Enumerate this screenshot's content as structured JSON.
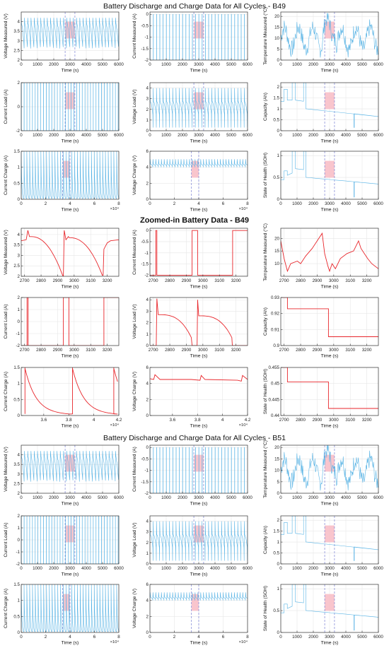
{
  "figure": {
    "section_titles": [
      "Battery Discharge and Charge Data for All Cycles - B49",
      "Zoomed-in Battery Data - B49",
      "Battery Discharge and Charge Data for All Cycles - B51"
    ],
    "colors": {
      "overview_line": "#5ab4e5",
      "zoom_line": "#e8262b",
      "highlight_fill": "#f7b6c0",
      "highlight_edge": "#8a8fd8",
      "axes": "#333333",
      "grid": "#e6e6e6"
    },
    "exponent_label": "×10⁴"
  },
  "chart_data": [
    {
      "id": "b49-voltage-measured",
      "section": 0,
      "type": "line",
      "ylabel": "Voltage Measured (V)",
      "xlabel": "Time (s)",
      "xlim": [
        0,
        6000
      ],
      "ylim": [
        2,
        4.5
      ],
      "xticks": [
        0,
        1000,
        2000,
        3000,
        4000,
        5000,
        6000
      ],
      "yticks": [
        2,
        2.5,
        3,
        3.5,
        4
      ],
      "pattern": "sawtooth_down",
      "highlight": [
        2700,
        3300
      ],
      "grid": true
    },
    {
      "id": "b49-current-measured",
      "section": 0,
      "type": "line",
      "ylabel": "Current Measured (A)",
      "xlabel": "Time (s)",
      "xlim": [
        0,
        6000
      ],
      "ylim": [
        -2,
        0.1
      ],
      "xticks": [
        0,
        1000,
        2000,
        3000,
        4000,
        5000,
        6000
      ],
      "yticks": [
        -2,
        -1.5,
        -1,
        -0.5,
        0
      ],
      "pattern": "square_neg",
      "highlight": [
        2700,
        3300
      ],
      "grid": true
    },
    {
      "id": "b49-temperature-measured",
      "section": 0,
      "type": "line",
      "ylabel": "Temperature Measured (°C)",
      "xlabel": "Time (s)",
      "xlim": [
        0,
        6000
      ],
      "ylim": [
        0,
        22
      ],
      "xticks": [
        0,
        1000,
        2000,
        3000,
        4000,
        5000,
        6000
      ],
      "yticks": [
        0,
        5,
        10,
        15,
        20
      ],
      "pattern": "noisy_temp",
      "highlight": [
        2700,
        3300
      ],
      "grid": true
    },
    {
      "id": "b49-current-load",
      "section": 0,
      "type": "line",
      "ylabel": "Current Load (A)",
      "xlabel": "Time (s)",
      "xlim": [
        0,
        6000
      ],
      "ylim": [
        -2,
        2
      ],
      "xticks": [
        0,
        1000,
        2000,
        3000,
        4000,
        5000,
        6000
      ],
      "yticks": [
        -2,
        0,
        2
      ],
      "pattern": "square_full",
      "highlight": [
        2700,
        3300
      ],
      "grid": true
    },
    {
      "id": "b49-voltage-load",
      "section": 0,
      "type": "line",
      "ylabel": "Voltage Load (V)",
      "xlabel": "Time (s)",
      "xlim": [
        0,
        6000
      ],
      "ylim": [
        0,
        4.5
      ],
      "xticks": [
        0,
        1000,
        2000,
        3000,
        4000,
        5000,
        6000
      ],
      "yticks": [
        0,
        1,
        2,
        3,
        4
      ],
      "pattern": "sawtooth_load",
      "highlight": [
        2700,
        3300
      ],
      "grid": true
    },
    {
      "id": "b49-capacity",
      "section": 0,
      "type": "line",
      "ylabel": "Capacity (Ah)",
      "xlabel": "Time (s)",
      "xlim": [
        0,
        6000
      ],
      "ylim": [
        0,
        2.2
      ],
      "xticks": [
        0,
        1000,
        2000,
        3000,
        4000,
        5000,
        6000
      ],
      "yticks": [
        0,
        0.5,
        1,
        1.5,
        2
      ],
      "pattern": "capacity",
      "highlight": [
        2700,
        3300
      ],
      "grid": true
    },
    {
      "id": "b49-current-charge",
      "section": 0,
      "type": "line",
      "ylabel": "Current Charge (A)",
      "xlabel": "Time (s)",
      "xlim": [
        0,
        80000
      ],
      "ylim": [
        0,
        1.5
      ],
      "xticks": [
        0,
        20000,
        40000,
        60000,
        80000
      ],
      "xticklabels": [
        "0",
        "2",
        "4",
        "6",
        "8"
      ],
      "yticks": [
        0,
        0.5,
        1,
        1.5
      ],
      "pattern": "charge_spikes",
      "highlight": [
        34000,
        40000
      ],
      "exponent": true,
      "grid": true
    },
    {
      "id": "b49-voltage-charge",
      "section": 0,
      "type": "line",
      "ylabel": "Voltage Charge (V)",
      "xlabel": "Time (s)",
      "xlim": [
        0,
        80000
      ],
      "ylim": [
        0,
        6
      ],
      "xticks": [
        0,
        20000,
        40000,
        60000,
        80000
      ],
      "xticklabels": [
        "0",
        "2",
        "4",
        "6",
        "8"
      ],
      "yticks": [
        0,
        2,
        4,
        6
      ],
      "pattern": "voltage_charge",
      "highlight": [
        34000,
        40000
      ],
      "exponent": true,
      "grid": true
    },
    {
      "id": "b49-state-of-health",
      "section": 0,
      "type": "line",
      "ylabel": "State of Health (SOH)",
      "xlabel": "Time (s)",
      "xlim": [
        0,
        6000
      ],
      "ylim": [
        0,
        1.1
      ],
      "xticks": [
        0,
        1000,
        2000,
        3000,
        4000,
        5000,
        6000
      ],
      "yticks": [
        0,
        0.5,
        1
      ],
      "pattern": "soh",
      "highlight": [
        2700,
        3300
      ],
      "grid": true
    },
    {
      "id": "zoom-voltage-measured",
      "section": 1,
      "type": "line",
      "ylabel": "Voltage Measured (V)",
      "xlabel": "Time (s)",
      "xlim": [
        2680,
        3270
      ],
      "ylim": [
        2,
        4.3
      ],
      "xticks": [
        2700,
        2800,
        2900,
        3000,
        3100,
        3200
      ],
      "yticks": [
        2,
        2.5,
        3,
        3.5,
        4
      ],
      "pattern": "zoom_voltage",
      "zoom": true,
      "grid": true
    },
    {
      "id": "zoom-current-measured",
      "section": 1,
      "type": "line",
      "ylabel": "Current Measured (A)",
      "xlabel": "Time (s)",
      "xlim": [
        2680,
        3270
      ],
      "ylim": [
        -2.05,
        0.1
      ],
      "xticks": [
        2700,
        2800,
        2900,
        3000,
        3100,
        3200
      ],
      "yticks": [
        -2,
        -1.5,
        -1,
        -0.5,
        0
      ],
      "pattern": "zoom_current",
      "zoom": true,
      "grid": true
    },
    {
      "id": "zoom-temperature-measured",
      "section": 1,
      "type": "line",
      "ylabel": "Temperature Measured (°C)",
      "xlabel": "Time (s)",
      "xlim": [
        2680,
        3270
      ],
      "ylim": [
        5,
        24
      ],
      "xticks": [
        2700,
        2800,
        2900,
        3000,
        3100,
        3200
      ],
      "yticks": [
        10,
        15,
        20
      ],
      "pattern": "zoom_temp",
      "zoom": true,
      "grid": true
    },
    {
      "id": "zoom-current-load",
      "section": 1,
      "type": "line",
      "ylabel": "Current Load (A)",
      "xlabel": "Time (s)",
      "xlim": [
        2680,
        3270
      ],
      "ylim": [
        -2,
        2
      ],
      "xticks": [
        2700,
        2800,
        2900,
        3000,
        3100,
        3200
      ],
      "yticks": [
        -2,
        -1,
        0,
        1,
        2
      ],
      "pattern": "zoom_load",
      "zoom": true,
      "grid": true
    },
    {
      "id": "zoom-voltage-load",
      "section": 1,
      "type": "line",
      "ylabel": "Voltage Load (V)",
      "xlabel": "Time (s)",
      "xlim": [
        2680,
        3270
      ],
      "ylim": [
        0,
        4.2
      ],
      "xticks": [
        2700,
        2800,
        2900,
        3000,
        3100,
        3200
      ],
      "yticks": [
        0,
        1,
        2,
        3,
        4
      ],
      "pattern": "zoom_vload",
      "zoom": true,
      "grid": true
    },
    {
      "id": "zoom-capacity",
      "section": 1,
      "type": "line",
      "ylabel": "Capacity (Ah)",
      "xlabel": "Time (s)",
      "xlim": [
        2680,
        3270
      ],
      "ylim": [
        0.9,
        0.93
      ],
      "xticks": [
        2700,
        2800,
        2900,
        3000,
        3100,
        3200
      ],
      "yticks": [
        0.9,
        0.91,
        0.92,
        0.93
      ],
      "pattern": "zoom_capacity",
      "zoom": true,
      "grid": true
    },
    {
      "id": "zoom-current-charge",
      "section": 1,
      "type": "line",
      "ylabel": "Current Charge (A)",
      "xlabel": "Time (s)",
      "xlim": [
        34200,
        42000
      ],
      "ylim": [
        0,
        1.5
      ],
      "xticks": [
        36000,
        38000,
        40000,
        42000
      ],
      "xticklabels": [
        "3.6",
        "3.8",
        "4",
        "4.2"
      ],
      "yticks": [
        0,
        0.5,
        1,
        1.5
      ],
      "pattern": "zoom_ccharge",
      "zoom": true,
      "exponent": true,
      "grid": true
    },
    {
      "id": "zoom-voltage-charge",
      "section": 1,
      "type": "line",
      "ylabel": "Voltage Charge (V)",
      "xlabel": "Time (s)",
      "xlim": [
        34200,
        42000
      ],
      "ylim": [
        0,
        6
      ],
      "xticks": [
        36000,
        38000,
        40000,
        42000
      ],
      "xticklabels": [
        "3.6",
        "3.8",
        "4",
        "4.2"
      ],
      "yticks": [
        0,
        2,
        4,
        6
      ],
      "pattern": "zoom_vcharge",
      "zoom": true,
      "exponent": true,
      "grid": true
    },
    {
      "id": "zoom-state-of-health",
      "section": 1,
      "type": "line",
      "ylabel": "State of Health (SOH)",
      "xlabel": "Time (s)",
      "xlim": [
        2680,
        3270
      ],
      "ylim": [
        0.44,
        0.455
      ],
      "xticks": [
        2700,
        2800,
        2900,
        3000,
        3100,
        3200
      ],
      "yticks": [
        0.44,
        0.445,
        0.45,
        0.455
      ],
      "pattern": "zoom_soh",
      "zoom": true,
      "grid": true
    },
    {
      "id": "b51-voltage-measured",
      "section": 2,
      "type": "line",
      "ylabel": "Voltage Measured (V)",
      "xlabel": "Time (s)",
      "xlim": [
        0,
        6000
      ],
      "ylim": [
        2,
        4.5
      ],
      "xticks": [
        0,
        1000,
        2000,
        3000,
        4000,
        5000,
        6000
      ],
      "yticks": [
        2,
        2.5,
        3,
        3.5,
        4
      ],
      "pattern": "sawtooth_down",
      "highlight": [
        2700,
        3300
      ],
      "grid": true
    },
    {
      "id": "b51-current-measured",
      "section": 2,
      "type": "line",
      "ylabel": "Current Measured (A)",
      "xlabel": "Time (s)",
      "xlim": [
        0,
        6000
      ],
      "ylim": [
        -2,
        0.1
      ],
      "xticks": [
        0,
        1000,
        2000,
        3000,
        4000,
        5000,
        6000
      ],
      "yticks": [
        -2,
        -1.5,
        -1,
        -0.5,
        0
      ],
      "pattern": "square_neg",
      "highlight": [
        2700,
        3300
      ],
      "grid": true
    },
    {
      "id": "b51-temperature-measured",
      "section": 2,
      "type": "line",
      "ylabel": "Temperature Measured (°C)",
      "xlabel": "Time (s)",
      "xlim": [
        0,
        6000
      ],
      "ylim": [
        0,
        21
      ],
      "xticks": [
        0,
        1000,
        2000,
        3000,
        4000,
        5000,
        6000
      ],
      "yticks": [
        0,
        5,
        10,
        15,
        20
      ],
      "pattern": "noisy_temp",
      "highlight": [
        2700,
        3300
      ],
      "grid": true
    },
    {
      "id": "b51-current-load",
      "section": 2,
      "type": "line",
      "ylabel": "Current Load (A)",
      "xlabel": "Time (s)",
      "xlim": [
        0,
        6000
      ],
      "ylim": [
        -2,
        2
      ],
      "xticks": [
        0,
        1000,
        2000,
        3000,
        4000,
        5000,
        6000
      ],
      "yticks": [
        -2,
        -1,
        0,
        1,
        2
      ],
      "pattern": "square_full",
      "highlight": [
        2700,
        3300
      ],
      "grid": true
    },
    {
      "id": "b51-voltage-load",
      "section": 2,
      "type": "line",
      "ylabel": "Voltage Load (V)",
      "xlabel": "Time (s)",
      "xlim": [
        0,
        6000
      ],
      "ylim": [
        0,
        4.5
      ],
      "xticks": [
        0,
        1000,
        2000,
        3000,
        4000,
        5000,
        6000
      ],
      "yticks": [
        0,
        1,
        2,
        3,
        4
      ],
      "pattern": "sawtooth_load",
      "highlight": [
        2700,
        3300
      ],
      "grid": true
    },
    {
      "id": "b51-capacity",
      "section": 2,
      "type": "line",
      "ylabel": "Capacity (Ah)",
      "xlabel": "Time (s)",
      "xlim": [
        0,
        6000
      ],
      "ylim": [
        0,
        2.2
      ],
      "xticks": [
        0,
        1000,
        2000,
        3000,
        4000,
        5000,
        6000
      ],
      "yticks": [
        0,
        0.5,
        1,
        1.5,
        2
      ],
      "pattern": "capacity",
      "highlight": [
        2700,
        3300
      ],
      "grid": true
    },
    {
      "id": "b51-current-charge",
      "section": 2,
      "type": "line",
      "ylabel": "Current Charge (A)",
      "xlabel": "Time (s)",
      "xlim": [
        0,
        80000
      ],
      "ylim": [
        0,
        1.5
      ],
      "xticks": [
        0,
        20000,
        40000,
        60000,
        80000
      ],
      "xticklabels": [
        "0",
        "2",
        "4",
        "6",
        "8"
      ],
      "yticks": [
        0,
        0.5,
        1,
        1.5
      ],
      "pattern": "charge_spikes",
      "highlight": [
        34000,
        40000
      ],
      "exponent": true,
      "grid": true
    },
    {
      "id": "b51-voltage-charge",
      "section": 2,
      "type": "line",
      "ylabel": "Voltage Charge (V)",
      "xlabel": "Time (s)",
      "xlim": [
        0,
        80000
      ],
      "ylim": [
        0,
        6
      ],
      "xticks": [
        0,
        20000,
        40000,
        60000,
        80000
      ],
      "xticklabels": [
        "0",
        "2",
        "4",
        "6",
        "8"
      ],
      "yticks": [
        0,
        2,
        4,
        6
      ],
      "pattern": "voltage_charge",
      "highlight": [
        34000,
        40000
      ],
      "exponent": true,
      "grid": true
    },
    {
      "id": "b51-state-of-health",
      "section": 2,
      "type": "line",
      "ylabel": "State of Health (SOH)",
      "xlabel": "Time (s)",
      "xlim": [
        0,
        6000
      ],
      "ylim": [
        0,
        1.1
      ],
      "xticks": [
        0,
        1000,
        2000,
        3000,
        4000,
        5000,
        6000
      ],
      "yticks": [
        0,
        0.5,
        1
      ],
      "pattern": "soh",
      "highlight": [
        2700,
        3300
      ],
      "grid": true
    }
  ]
}
